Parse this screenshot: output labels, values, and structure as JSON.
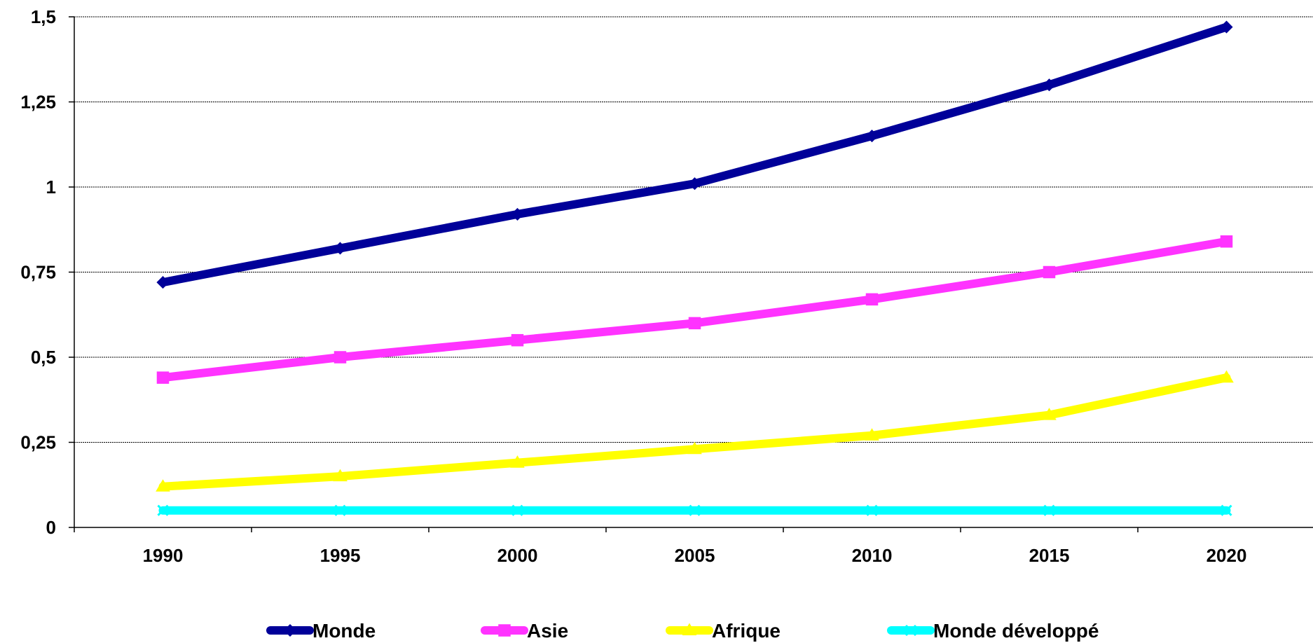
{
  "chart_data": {
    "type": "line",
    "title": "",
    "xlabel": "",
    "ylabel": "",
    "x": [
      "1990",
      "1995",
      "2000",
      "2005",
      "2010",
      "2015",
      "2020"
    ],
    "y_ticks": [
      "0",
      "0,25",
      "0,5",
      "0,75",
      "1",
      "1,25",
      "1,5"
    ],
    "ylim": [
      0,
      1.5
    ],
    "grid": true,
    "legend_position": "bottom",
    "series": [
      {
        "name": "Monde",
        "color": "#000099",
        "marker": "diamond",
        "values": [
          0.72,
          0.82,
          0.92,
          1.01,
          1.15,
          1.3,
          1.47
        ]
      },
      {
        "name": "Asie",
        "color": "#FF33FF",
        "marker": "square",
        "values": [
          0.44,
          0.5,
          0.55,
          0.6,
          0.67,
          0.75,
          0.84
        ]
      },
      {
        "name": "Afrique",
        "color": "#FFFF00",
        "marker": "triangle",
        "values": [
          0.12,
          0.15,
          0.19,
          0.23,
          0.27,
          0.33,
          0.44
        ]
      },
      {
        "name": "Monde développé",
        "color": "#00FFFF",
        "marker": "x",
        "values": [
          0.05,
          0.05,
          0.05,
          0.05,
          0.05,
          0.05,
          0.05
        ]
      }
    ]
  }
}
